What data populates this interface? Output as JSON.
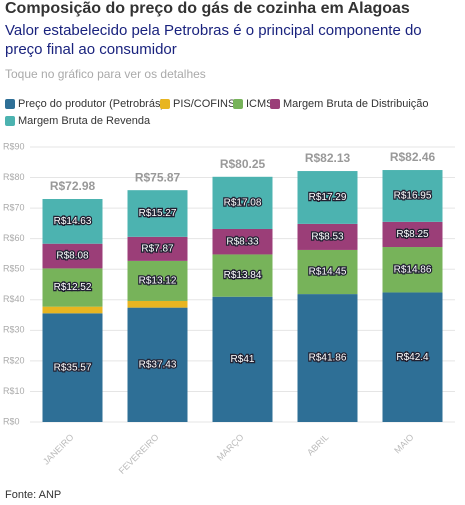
{
  "chart_data": {
    "type": "stacked_bar",
    "title": "Composição do preço do gás de cozinha em Alagoas",
    "subtitle": "Valor estabelecido pela Petrobras é o principal componente do preço final ao consumidor",
    "hint": "Toque no gráfico para ver os detalhes",
    "source": "Fonte: ANP",
    "categories": [
      "JANEIRO",
      "FEVEREIRO",
      "MARÇO",
      "ABRIL",
      "MAIO"
    ],
    "series": [
      {
        "name": "Preço do produtor (Petrobrás)",
        "color": "#2e6f96",
        "values": [
          35.57,
          37.43,
          41,
          41.86,
          42.4
        ],
        "value_labels": [
          "R$35.57",
          "R$37.43",
          "R$41",
          "R$41.86",
          "R$42.4"
        ]
      },
      {
        "name": "PIS/COFINS",
        "color": "#e8b520",
        "values": [
          2.18,
          2.18,
          0,
          0,
          0
        ]
      },
      {
        "name": "ICMS",
        "color": "#77b35a",
        "values": [
          12.52,
          13.12,
          13.84,
          14.45,
          14.86
        ],
        "value_labels": [
          "R$12.52",
          "R$13.12",
          "R$13.84",
          "R$14.45",
          "R$14.86"
        ]
      },
      {
        "name": "Margem Bruta de Distribuição",
        "color": "#9b3e78",
        "values": [
          8.08,
          7.87,
          8.33,
          8.53,
          8.25
        ],
        "value_labels": [
          "R$8.08",
          "R$7.87",
          "R$8.33",
          "R$8.53",
          "R$8.25"
        ]
      },
      {
        "name": "Margem Bruta de Revenda",
        "color": "#4cb3b0",
        "values": [
          14.63,
          15.27,
          17.08,
          17.29,
          16.95
        ],
        "value_labels": [
          "R$14.63",
          "R$15.27",
          "R$17.08",
          "R$17.29",
          "R$16.95"
        ]
      }
    ],
    "totals": [
      72.98,
      75.87,
      80.25,
      82.13,
      82.46
    ],
    "total_labels": [
      "R$72.98",
      "R$75.87",
      "R$80.25",
      "R$82.13",
      "R$82.46"
    ],
    "ylim": [
      0,
      90
    ],
    "yticks": [
      {
        "value": 0,
        "label": "R$0"
      },
      {
        "value": 10,
        "label": "R$10"
      },
      {
        "value": 20,
        "label": "R$20"
      },
      {
        "value": 30,
        "label": "R$30"
      },
      {
        "value": 40,
        "label": "R$40"
      },
      {
        "value": 50,
        "label": "R$50"
      },
      {
        "value": 60,
        "label": "R$60"
      },
      {
        "value": 70,
        "label": "R$70"
      },
      {
        "value": 80,
        "label": "R$80"
      },
      {
        "value": 90,
        "label": "R$90"
      }
    ],
    "grid": true
  }
}
